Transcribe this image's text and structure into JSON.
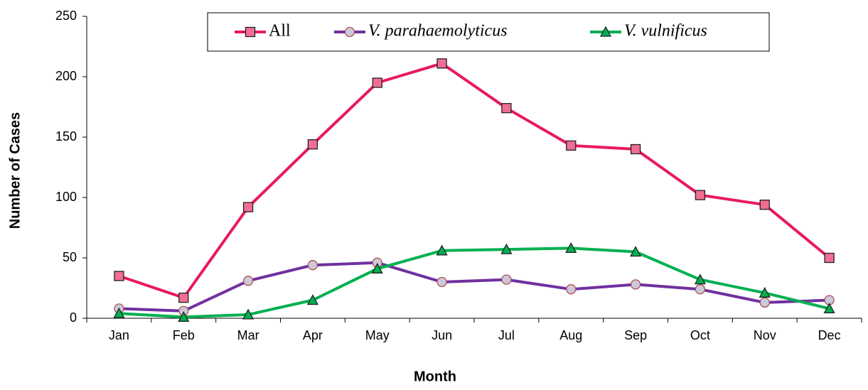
{
  "chart_data": {
    "type": "line",
    "xlabel": "Month",
    "ylabel": "Number of Cases",
    "categories": [
      "Jan",
      "Feb",
      "Mar",
      "Apr",
      "May",
      "Jun",
      "Jul",
      "Aug",
      "Sep",
      "Oct",
      "Nov",
      "Dec"
    ],
    "series": [
      {
        "name": "All",
        "color": "#e8195f",
        "marker": "square",
        "marker_fill": "#f06e94",
        "values": [
          35,
          17,
          92,
          144,
          195,
          211,
          174,
          143,
          140,
          102,
          94,
          50
        ]
      },
      {
        "name": "V. parahaemolyticus",
        "color": "#7030a0",
        "marker": "circle",
        "marker_fill": "#ccc8dc",
        "values": [
          8,
          6,
          31,
          44,
          46,
          30,
          32,
          24,
          28,
          24,
          13,
          15
        ]
      },
      {
        "name": "V. vulnificus",
        "color": "#00b050",
        "marker": "triangle",
        "marker_fill": "#00b050",
        "values": [
          4,
          1,
          3,
          15,
          41,
          56,
          57,
          58,
          55,
          32,
          21,
          8
        ]
      }
    ],
    "ylim": [
      0,
      250
    ],
    "yticks": [
      0,
      50,
      100,
      150,
      200,
      250
    ],
    "grid": false,
    "legend": "top"
  }
}
